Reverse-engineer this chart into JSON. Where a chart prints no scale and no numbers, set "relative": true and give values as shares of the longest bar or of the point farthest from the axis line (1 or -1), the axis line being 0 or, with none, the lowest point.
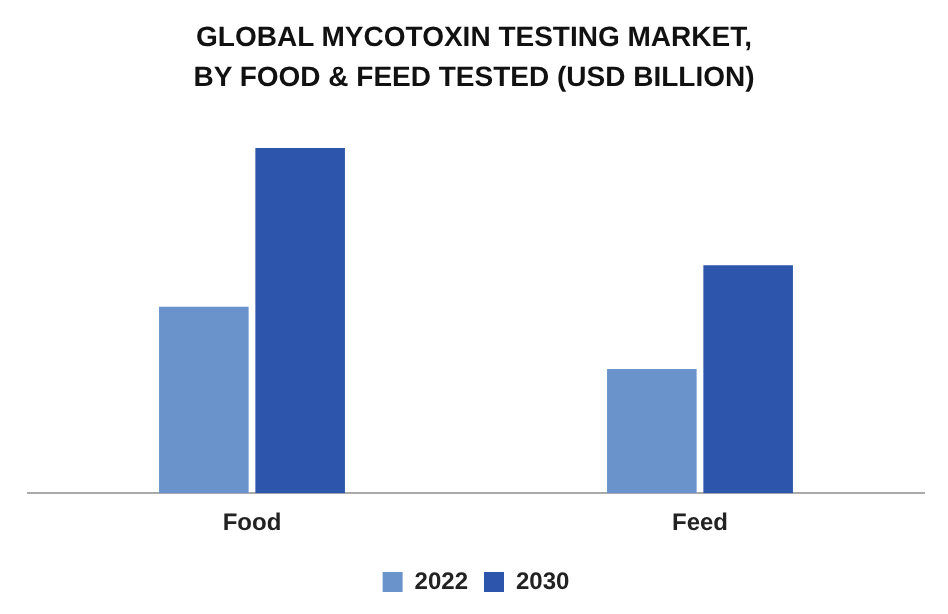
{
  "chart_data": {
    "type": "bar",
    "title": "GLOBAL MYCOTOXIN TESTING MARKET, BY FOOD & FEED TESTED (USD BILLION)",
    "categories": [
      "Food",
      "Feed"
    ],
    "relative": true,
    "legend": "bottom",
    "grid": false,
    "series": [
      {
        "name": "2022",
        "color": "#6a93cb",
        "values": [
          0.54,
          0.36
        ]
      },
      {
        "name": "2030",
        "color": "#2d55ac",
        "values": [
          1,
          0.66
        ]
      }
    ]
  }
}
